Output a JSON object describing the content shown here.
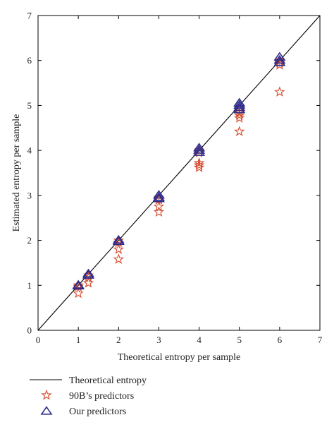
{
  "chart_data": {
    "type": "scatter",
    "xlabel": "Theoretical entropy per sample",
    "ylabel": "Estimated entropy per sample",
    "xlim": [
      0,
      7
    ],
    "ylim": [
      0,
      7
    ],
    "xticks": [
      "0",
      "1",
      "2",
      "3",
      "4",
      "5",
      "6",
      "7"
    ],
    "yticks": [
      "0",
      "1",
      "2",
      "3",
      "4",
      "5",
      "6",
      "7"
    ],
    "grid": false,
    "legend": "below",
    "series": [
      {
        "name": "Theoretical entropy",
        "kind": "line",
        "color": "#000000",
        "points": [
          [
            0,
            0
          ],
          [
            7,
            7
          ]
        ]
      },
      {
        "name": "90B’s predictors",
        "kind": "marker",
        "marker": "star",
        "color": "#d4492a",
        "points": [
          [
            1,
            1.0
          ],
          [
            1,
            0.97
          ],
          [
            1,
            0.82
          ],
          [
            1.25,
            1.22
          ],
          [
            1.25,
            1.18
          ],
          [
            1.25,
            1.05
          ],
          [
            2,
            2.0
          ],
          [
            2,
            1.95
          ],
          [
            2,
            1.8
          ],
          [
            2,
            1.58
          ],
          [
            3,
            2.95
          ],
          [
            3,
            2.9
          ],
          [
            3,
            2.75
          ],
          [
            3,
            2.63
          ],
          [
            4,
            4.0
          ],
          [
            4,
            3.95
          ],
          [
            4,
            3.72
          ],
          [
            4,
            3.67
          ],
          [
            4,
            3.62
          ],
          [
            5,
            4.95
          ],
          [
            5,
            4.85
          ],
          [
            5,
            4.78
          ],
          [
            5,
            4.72
          ],
          [
            5,
            4.42
          ],
          [
            6,
            6.0
          ],
          [
            6,
            5.95
          ],
          [
            6,
            5.9
          ],
          [
            6,
            5.3
          ]
        ]
      },
      {
        "name": "Our predictors",
        "kind": "marker",
        "marker": "triangle",
        "color": "#2e2c8c",
        "points": [
          [
            1,
            1.0
          ],
          [
            1,
            0.98
          ],
          [
            1.25,
            1.25
          ],
          [
            1.25,
            1.22
          ],
          [
            2,
            2.0
          ],
          [
            2,
            1.97
          ],
          [
            3,
            3.0
          ],
          [
            3,
            2.95
          ],
          [
            3,
            2.92
          ],
          [
            4,
            4.05
          ],
          [
            4,
            4.0
          ],
          [
            4,
            3.95
          ],
          [
            5,
            5.05
          ],
          [
            5,
            5.0
          ],
          [
            5,
            4.95
          ],
          [
            5,
            4.9
          ],
          [
            6,
            6.07
          ],
          [
            6,
            6.0
          ],
          [
            6,
            5.95
          ]
        ]
      }
    ]
  }
}
